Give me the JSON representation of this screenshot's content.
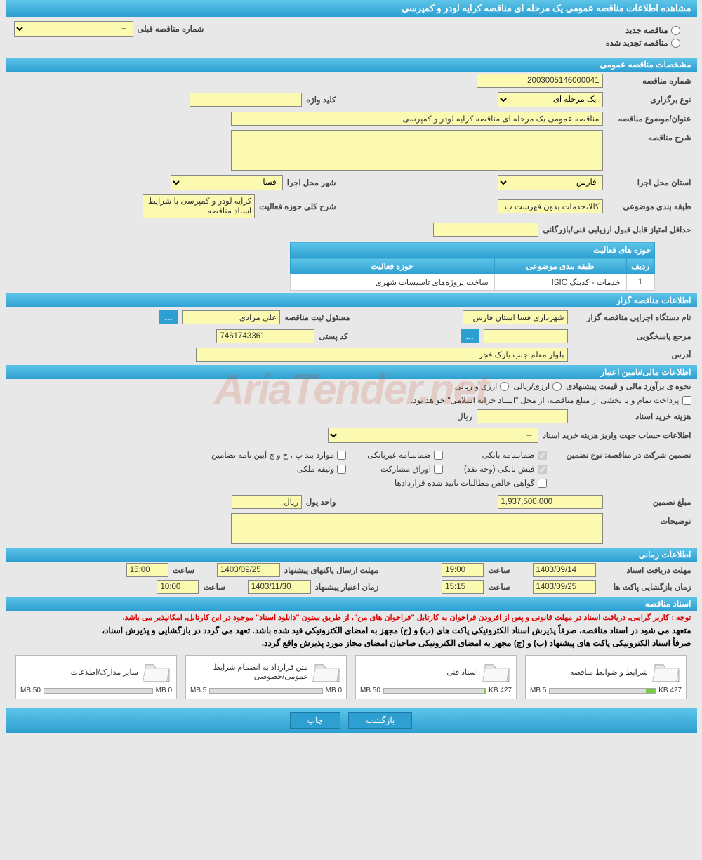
{
  "pageTitle": "مشاهده اطلاعات مناقصه عمومی یک مرحله ای مناقصه کرایه لودر و کمپرسی",
  "radios": {
    "new": "مناقصه جدید",
    "renewed": "مناقصه تجدید شده"
  },
  "prevTenderLabel": "شماره مناقصه قبلی",
  "prevTenderValue": "--",
  "sections": {
    "general": "مشخصات مناقصه عمومی",
    "holder": "اطلاعات مناقصه گزار",
    "financial": "اطلاعات مالی/تامین اعتبار",
    "timing": "اطلاعات زمانی",
    "docs": "اسناد مناقصه"
  },
  "general": {
    "tenderNoLabel": "شماره مناقصه",
    "tenderNo": "2003005146000041",
    "holdTypeLabel": "نوع برگزاری",
    "holdType": "یک مرحله ای",
    "keywordLabel": "کلید واژه",
    "keyword": "",
    "subjectLabel": "عنوان/موضوع مناقصه",
    "subject": "مناقصه عمومی یک مرحله ای مناقصه کرایه لودر و کمپرسی",
    "descLabel": "شرح مناقصه",
    "provinceLabel": "استان محل اجرا",
    "province": "فارس",
    "cityLabel": "شهر محل اجرا",
    "city": "فسا",
    "classLabel": "طبقه بندی موضوعی",
    "classValue": "کالا،خدمات بدون فهرست ب",
    "activityDescLabel": "شرح کلی حوزه فعالیت",
    "activityDesc": "کرایه لودر و کمپرسی با شرایط اسناد مناقصه",
    "minScoreLabel": "حداقل امتیاز قابل قبول ارزیابی فنی/بازرگانی",
    "minScore": ""
  },
  "activityTable": {
    "title": "حوزه های فعالیت",
    "cols": {
      "row": "ردیف",
      "class": "طبقه بندی موضوعی",
      "area": "حوزه فعالیت"
    },
    "rows": [
      {
        "n": "1",
        "class": "خدمات - کدینگ ISIC",
        "area": "ساخت پروژه‌های تاسیسات شهری"
      }
    ]
  },
  "holder": {
    "orgLabel": "نام دستگاه اجرایی مناقصه گزار",
    "org": "شهرداری فسا استان فارس",
    "registrarLabel": "مسئول ثبت مناقصه",
    "registrar": "علی مرادی",
    "responderLabel": "مرجع پاسخگویی",
    "responder": "",
    "postalLabel": "کد پستی",
    "postal": "7461743361",
    "addressLabel": "آدرس",
    "address": "بلوار معلم جنب پارک فجر"
  },
  "financial": {
    "estimateLabel": "نحوه ی برآورد مالی و قیمت پیشنهادی",
    "currencyOpt1": "ارزی/ریالی",
    "currencyOpt2": "ارزی و ریالی",
    "treasuryNote": "پرداخت تمام و یا بخشی از مبلغ مناقصه، از محل \"اسناد خزانه اسلامی\" خواهد بود.",
    "docCostLabel": "هزینه خرید اسناد",
    "docCost": "",
    "rial": "ریال",
    "accountLabel": "اطلاعات حساب جهت واریز هزینه خرید اسناد",
    "accountValue": "--",
    "guaranteeTypeLabel": "تضمین شرکت در مناقصه:   نوع تضمین",
    "checks": {
      "bankGuarantee": "ضمانتنامه بانکی",
      "nonBankGuarantee": "ضمانتنامه غیربانکی",
      "bylawCases": "موارد بند پ ، ج و چ آیین نامه تضامین",
      "bankReceipt": "فیش بانکی (وجه نقد)",
      "bonds": "اوراق مشارکت",
      "propertyBond": "وثیقه ملکی",
      "netClaims": "گواهی خالص مطالبات تایید شده قراردادها"
    },
    "amountLabel": "مبلغ تضمین",
    "amount": "1,937,500,000",
    "unitLabel": "واحد پول",
    "unit": "ریال",
    "notesLabel": "توضیحات"
  },
  "timing": {
    "docDeadlineLabel": "مهلت دریافت اسناد",
    "docDeadline": "1403/09/14",
    "docDeadlineTimeLabel": "ساعت",
    "docDeadlineTime": "19:00",
    "pkgDeadlineLabel": "مهلت ارسال پاکتهای پیشنهاد",
    "pkgDeadline": "1403/09/25",
    "pkgDeadlineTime": "15:00",
    "openLabel": "زمان بازگشایی پاکت ها",
    "openDate": "1403/09/25",
    "openTime": "15:15",
    "validLabel": "زمان اعتبار پیشنهاد",
    "validDate": "1403/11/30",
    "validTime": "10:00"
  },
  "docs": {
    "notice1": "توجه : کاربر گرامی، دریافت اسناد در مهلت قانونی و پس از افزودن فراخوان به کارتابل \"فراخوان های من\"، از طریق ستون \"دانلود اسناد\" موجود در این کارتابل، امکانپذیر می باشد.",
    "notice2": "متعهد می شود در اسناد مناقصه، صرفاً پذیرش اسناد الکترونیکی پاکت های (ب) و (ج) مجهز به امضای الکترونیکی قید شده باشد. تعهد می گردد در بازگشایی و پذیرش اسناد،",
    "notice3": "صرفاً اسناد الکترونیکی پاکت های پیشنهاد (ب) و (ج) مجهز به امضای الکترونیکی صاحبان امضای مجاز مورد پذیرش واقع گردد.",
    "files": [
      {
        "title": "شرایط و ضوابط مناقصه",
        "used": "427 KB",
        "total": "5 MB",
        "pct": 9
      },
      {
        "title": "اسناد فنی",
        "used": "427 KB",
        "total": "50 MB",
        "pct": 1
      },
      {
        "title": "متن قرارداد به انضمام شرایط عمومی/خصوصی",
        "used": "0 MB",
        "total": "5 MB",
        "pct": 0
      },
      {
        "title": "سایر مدارک/اطلاعات",
        "used": "0 MB",
        "total": "50 MB",
        "pct": 0
      }
    ]
  },
  "buttons": {
    "back": "بازگشت",
    "print": "چاپ",
    "dots": "..."
  },
  "watermark": "AriaTender.net"
}
